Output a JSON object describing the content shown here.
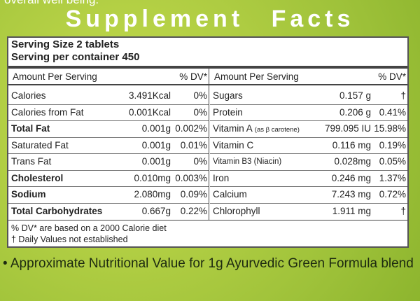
{
  "top_text": "overall well being.",
  "title": "Supplement Facts",
  "serving_size": "Serving Size 2 tablets",
  "serving_per_container": "Serving per container 450",
  "left": {
    "header": [
      "Amount Per Serving",
      "% DV*"
    ],
    "rows": [
      {
        "name": "Calories",
        "amount": "3.491Kcal",
        "dv": "0%",
        "bold": false
      },
      {
        "name": "Calories from Fat",
        "amount": "0.001Kcal",
        "dv": "0%",
        "bold": false
      },
      {
        "name": "Total Fat",
        "amount": "0.001g",
        "dv": "0.002%",
        "bold": true
      },
      {
        "name": "Saturated Fat",
        "amount": "0.001g",
        "dv": "0.01%",
        "bold": false
      },
      {
        "name": "Trans Fat",
        "amount": "0.001g",
        "dv": "0%",
        "bold": false
      },
      {
        "name": "Cholesterol",
        "amount": "0.010mg",
        "dv": "0.003%",
        "bold": true
      },
      {
        "name": "Sodium",
        "amount": "2.080mg",
        "dv": "0.09%",
        "bold": true
      },
      {
        "name": "Total Carbohydrates",
        "amount": "0.667g",
        "dv": "0.22%",
        "bold": true
      }
    ]
  },
  "right": {
    "header": [
      "Amount Per Serving",
      "% DV*"
    ],
    "rows": [
      {
        "name": "Sugars",
        "amount": "0.157 g",
        "dv": "†",
        "bold": false
      },
      {
        "name": "Protein",
        "amount": "0.206 g",
        "dv": "0.41%",
        "bold": false
      },
      {
        "name": "Vitamin A",
        "note": "(as β carotene)",
        "amount": "799.095 IU",
        "dv": "15.98%",
        "bold": false
      },
      {
        "name": "Vitamin C",
        "amount": "0.116 mg",
        "dv": "0.19%",
        "bold": false
      },
      {
        "name": "Vitamin B3 (Niacin)",
        "amount": "0.028mg",
        "dv": "0.05%",
        "bold": false,
        "small": true
      },
      {
        "name": "Iron",
        "amount": "0.246 mg",
        "dv": "1.37%",
        "bold": false
      },
      {
        "name": "Calcium",
        "amount": "7.243 mg",
        "dv": "0.72%",
        "bold": false
      },
      {
        "name": "Chlorophyll",
        "amount": "1.911 mg",
        "dv": "†",
        "bold": false
      }
    ]
  },
  "footnotes": [
    "% DV* are based on a 2000 Calorie diet",
    "† Daily Values not established"
  ],
  "bottom_text": "• Approximate Nutritional Value for 1g Ayurvedic Green Formula blend"
}
